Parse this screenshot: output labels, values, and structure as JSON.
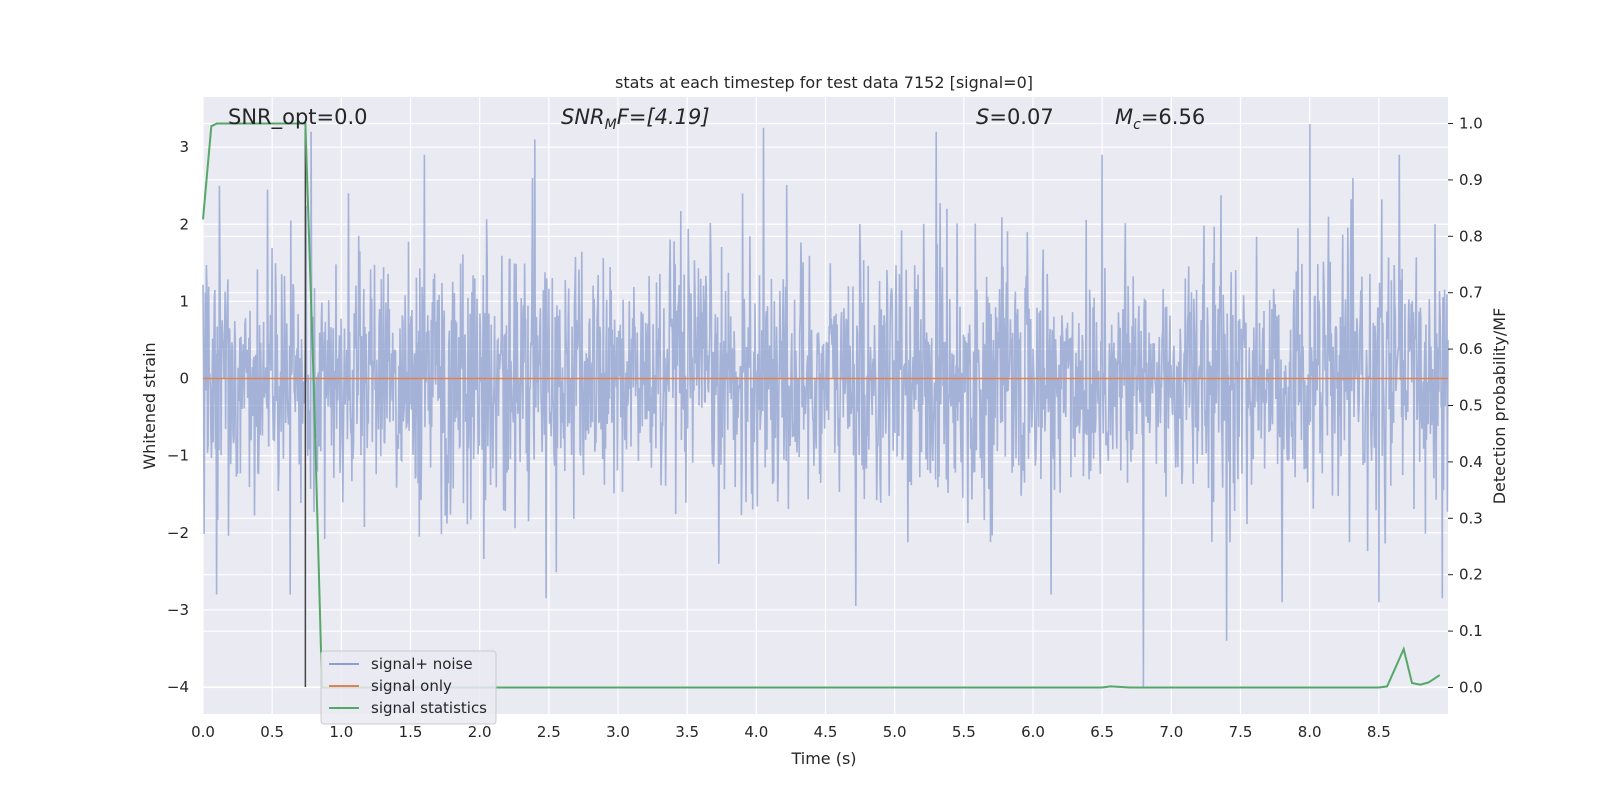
{
  "chart_data": {
    "type": "line",
    "title": "stats at each timestep for test data 7152 [signal=0]",
    "xlabel": "Time (s)",
    "ylabel": "Whitened strain",
    "ylabel_right": "Detection probability/MF",
    "xlim": [
      0.0,
      9.0
    ],
    "ylim": [
      -4.35,
      3.65
    ],
    "ylim_right": [
      -0.047,
      1.047
    ],
    "x_ticks": [
      "0.0",
      "0.5",
      "1.0",
      "1.5",
      "2.0",
      "2.5",
      "3.0",
      "3.5",
      "4.0",
      "4.5",
      "5.0",
      "5.5",
      "6.0",
      "6.5",
      "7.0",
      "7.5",
      "8.0",
      "8.5"
    ],
    "x_tick_values": [
      0,
      0.5,
      1,
      1.5,
      2,
      2.5,
      3,
      3.5,
      4,
      4.5,
      5,
      5.5,
      6,
      6.5,
      7,
      7.5,
      8,
      8.5
    ],
    "y_ticks": [
      "−4",
      "−3",
      "−2",
      "−1",
      "0",
      "1",
      "2",
      "3"
    ],
    "y_tick_values": [
      -4,
      -3,
      -2,
      -1,
      0,
      1,
      2,
      3
    ],
    "y_ticks_right": [
      "0.0",
      "0.1",
      "0.2",
      "0.3",
      "0.4",
      "0.5",
      "0.6",
      "0.7",
      "0.8",
      "0.9",
      "1.0"
    ],
    "y_tick_values_right": [
      0,
      0.1,
      0.2,
      0.3,
      0.4,
      0.5,
      0.6,
      0.7,
      0.8,
      0.9,
      1.0
    ],
    "grid": true,
    "legend_position": "lower-left",
    "annotations": {
      "snr_opt": "SNR_opt=0.0",
      "snr_mf_main": "SNR",
      "snr_mf_sub": "M",
      "snr_mf_rest": "F=[4.19]",
      "s_sym": "S",
      "s_rest": "=0.07",
      "mc_main": "M",
      "mc_sub": "c",
      "mc_rest": "=6.56"
    },
    "marker_line_x": 0.74,
    "series": [
      {
        "name": "signal+ noise",
        "color": "#8c9fcf",
        "axis": "left",
        "description_values": "white gaussian noise, std ~0.8",
        "std": 0.8,
        "n_points": 2200,
        "notable_spikes": [
          {
            "x": 0.1,
            "y": -2.8
          },
          {
            "x": 0.63,
            "y": -2.8
          },
          {
            "x": 0.12,
            "y": 2.5
          },
          {
            "x": 0.78,
            "y": 3.2
          },
          {
            "x": 1.05,
            "y": 2.4
          },
          {
            "x": 1.6,
            "y": 2.9
          },
          {
            "x": 2.4,
            "y": 3.1
          },
          {
            "x": 2.48,
            "y": -2.85
          },
          {
            "x": 3.9,
            "y": 2.4
          },
          {
            "x": 4.05,
            "y": 3.25
          },
          {
            "x": 4.72,
            "y": -2.95
          },
          {
            "x": 5.3,
            "y": 3.2
          },
          {
            "x": 6.13,
            "y": -2.8
          },
          {
            "x": 6.5,
            "y": 2.9
          },
          {
            "x": 6.8,
            "y": -4.0
          },
          {
            "x": 7.4,
            "y": -3.4
          },
          {
            "x": 7.8,
            "y": -2.9
          },
          {
            "x": 8.0,
            "y": 3.3
          },
          {
            "x": 8.5,
            "y": -2.9
          },
          {
            "x": 8.65,
            "y": 2.9
          },
          {
            "x": 8.96,
            "y": -2.85
          }
        ]
      },
      {
        "name": "signal only",
        "color": "#dd8452",
        "axis": "left",
        "x": [
          0,
          9.0
        ],
        "y": [
          0,
          0
        ]
      },
      {
        "name": "signal statistics",
        "color": "#55a868",
        "axis": "right",
        "x": [
          0.0,
          0.06,
          0.1,
          0.2,
          0.3,
          0.4,
          0.5,
          0.6,
          0.7,
          0.74,
          0.8,
          0.86,
          0.9,
          1.0,
          2.0,
          3.0,
          4.0,
          5.0,
          6.0,
          6.5,
          6.56,
          6.7,
          7.0,
          8.0,
          8.5,
          8.56,
          8.68,
          8.74,
          8.8,
          8.86,
          8.94
        ],
        "y": [
          0.83,
          0.995,
          1.0,
          1.0,
          1.0,
          1.0,
          1.0,
          1.0,
          1.0,
          1.0,
          0.54,
          0.0,
          0.0,
          0.0,
          0.0,
          0.0,
          0.0,
          0.0,
          0.0,
          0.0,
          0.002,
          0.0,
          0.0,
          0.0,
          0.0,
          0.002,
          0.068,
          0.008,
          0.005,
          0.009,
          0.022
        ]
      }
    ]
  }
}
